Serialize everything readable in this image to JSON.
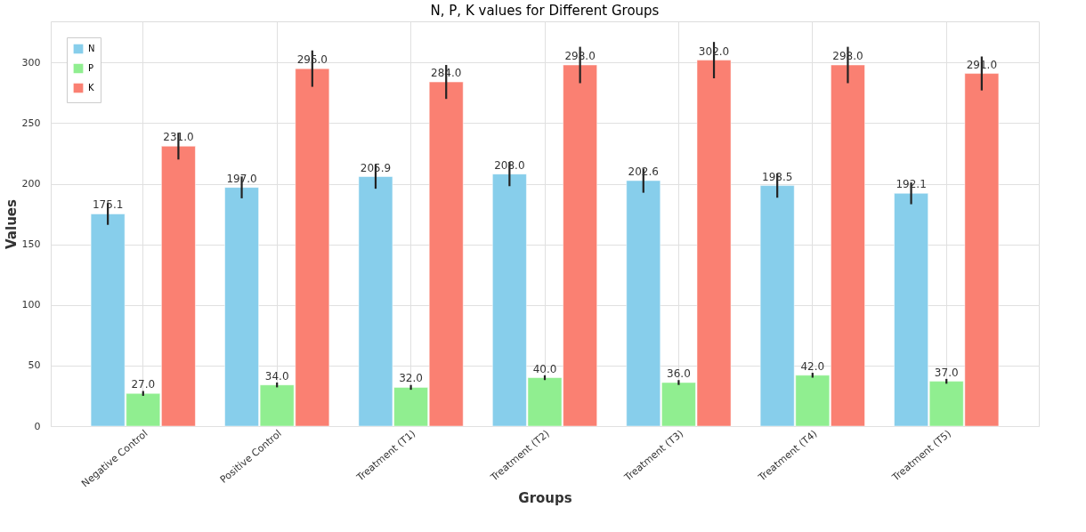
{
  "chart_data": {
    "type": "bar",
    "title": "N, P, K values for Different Groups",
    "xlabel": "Groups",
    "ylabel": "Values",
    "categories": [
      "Negative Control",
      "Positive Control",
      "Treatment (T1)",
      "Treatment (T2)",
      "Treatment (T3)",
      "Treatment (T4)",
      "Treatment (T5)"
    ],
    "series": [
      {
        "name": "N",
        "color": "#87ceeb",
        "values": [
          175.1,
          197.0,
          205.9,
          208.0,
          202.6,
          198.5,
          192.1
        ],
        "value_labels": [
          "175.1",
          "197.0",
          "205.9",
          "208.0",
          "202.6",
          "198.5",
          "192.1"
        ],
        "errors": [
          9,
          9,
          10,
          10,
          10,
          10,
          9
        ]
      },
      {
        "name": "P",
        "color": "#90ee90",
        "values": [
          27.0,
          34.0,
          32.0,
          40.0,
          36.0,
          42.0,
          37.0
        ],
        "value_labels": [
          "27.0",
          "34.0",
          "32.0",
          "40.0",
          "36.0",
          "42.0",
          "37.0"
        ],
        "errors": [
          2,
          2,
          2,
          2,
          2,
          2,
          2
        ]
      },
      {
        "name": "K",
        "color": "#fa8072",
        "values": [
          231.0,
          295.0,
          284.0,
          298.0,
          302.0,
          298.0,
          291.0
        ],
        "value_labels": [
          "231.0",
          "295.0",
          "284.0",
          "298.0",
          "302.0",
          "298.0",
          "291.0"
        ],
        "errors": [
          11,
          15,
          14,
          15,
          15,
          15,
          14
        ]
      }
    ],
    "ylim": [
      0,
      334
    ],
    "yticks": [
      0,
      50,
      100,
      150,
      200,
      250,
      300
    ],
    "grid": true,
    "legend": "top left"
  }
}
